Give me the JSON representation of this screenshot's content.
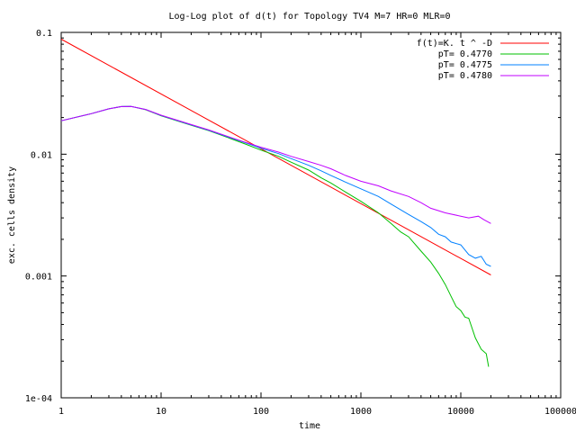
{
  "chart_data": {
    "type": "line",
    "title": "Log-Log plot of d(t) for Topology TV4 M=7 HR=0 MLR=0",
    "xlabel": "time",
    "ylabel": "exc. cells density",
    "x_scale": "log",
    "y_scale": "log",
    "xlim": [
      1,
      100000
    ],
    "ylim": [
      0.0001,
      0.1
    ],
    "grid": false,
    "legend_position": "top-right",
    "x_ticks": [
      {
        "value": 1,
        "label": "1"
      },
      {
        "value": 10,
        "label": "10"
      },
      {
        "value": 100,
        "label": "100"
      },
      {
        "value": 1000,
        "label": "1000"
      },
      {
        "value": 10000,
        "label": "10000"
      },
      {
        "value": 100000,
        "label": "100000"
      }
    ],
    "y_ticks": [
      {
        "value": 0.0001,
        "label": "1e-04"
      },
      {
        "value": 0.001,
        "label": "0.001"
      },
      {
        "value": 0.01,
        "label": "0.01"
      },
      {
        "value": 0.1,
        "label": "0.1"
      }
    ],
    "series": [
      {
        "name": "f(t)=K. t ^ -D",
        "color": "#ff0000",
        "points": [
          [
            1,
            0.088
          ],
          [
            20000,
            0.00102
          ]
        ]
      },
      {
        "name": "pT= 0.4770",
        "color": "#00c000",
        "points": [
          [
            1,
            0.0188
          ],
          [
            2,
            0.0215
          ],
          [
            3,
            0.0236
          ],
          [
            4,
            0.0246
          ],
          [
            5,
            0.0247
          ],
          [
            7,
            0.0232
          ],
          [
            10,
            0.0207
          ],
          [
            20,
            0.0173
          ],
          [
            30,
            0.0156
          ],
          [
            50,
            0.0134
          ],
          [
            70,
            0.0121
          ],
          [
            100,
            0.0108
          ],
          [
            150,
            0.0096
          ],
          [
            200,
            0.0086
          ],
          [
            300,
            0.0074
          ],
          [
            400,
            0.0064
          ],
          [
            500,
            0.0058
          ],
          [
            700,
            0.0049
          ],
          [
            1000,
            0.0041
          ],
          [
            1500,
            0.0033
          ],
          [
            2000,
            0.0027
          ],
          [
            2500,
            0.0023
          ],
          [
            3000,
            0.0021
          ],
          [
            4000,
            0.0016
          ],
          [
            5000,
            0.0013
          ],
          [
            6000,
            0.00105
          ],
          [
            7000,
            0.00085
          ],
          [
            8000,
            0.00068
          ],
          [
            9000,
            0.00056
          ],
          [
            10000,
            0.00052
          ],
          [
            11000,
            0.00046
          ],
          [
            12000,
            0.00045
          ],
          [
            14000,
            0.00031
          ],
          [
            16000,
            0.00025
          ],
          [
            18000,
            0.00023
          ],
          [
            19000,
            0.00018
          ]
        ]
      },
      {
        "name": "pT= 0.4775",
        "color": "#0080ff",
        "points": [
          [
            1,
            0.0188
          ],
          [
            2,
            0.0215
          ],
          [
            3,
            0.0236
          ],
          [
            4,
            0.0246
          ],
          [
            5,
            0.0247
          ],
          [
            7,
            0.0233
          ],
          [
            10,
            0.0208
          ],
          [
            20,
            0.0174
          ],
          [
            30,
            0.0157
          ],
          [
            50,
            0.0136
          ],
          [
            70,
            0.0124
          ],
          [
            100,
            0.0112
          ],
          [
            150,
            0.0101
          ],
          [
            200,
            0.0092
          ],
          [
            300,
            0.0081
          ],
          [
            400,
            0.0073
          ],
          [
            500,
            0.0067
          ],
          [
            700,
            0.0059
          ],
          [
            1000,
            0.0052
          ],
          [
            1500,
            0.0045
          ],
          [
            2000,
            0.0039
          ],
          [
            3000,
            0.0032
          ],
          [
            4000,
            0.0028
          ],
          [
            5000,
            0.0025
          ],
          [
            6000,
            0.0022
          ],
          [
            7000,
            0.0021
          ],
          [
            8000,
            0.0019
          ],
          [
            10000,
            0.0018
          ],
          [
            12000,
            0.0015
          ],
          [
            14000,
            0.0014
          ],
          [
            16000,
            0.00145
          ],
          [
            18000,
            0.00125
          ],
          [
            20000,
            0.0012
          ]
        ]
      },
      {
        "name": "pT= 0.4780",
        "color": "#c000ff",
        "points": [
          [
            1,
            0.0188
          ],
          [
            2,
            0.0215
          ],
          [
            3,
            0.0236
          ],
          [
            4,
            0.0246
          ],
          [
            5,
            0.0247
          ],
          [
            7,
            0.0233
          ],
          [
            10,
            0.0209
          ],
          [
            20,
            0.0175
          ],
          [
            30,
            0.0158
          ],
          [
            50,
            0.0137
          ],
          [
            70,
            0.0125
          ],
          [
            100,
            0.0114
          ],
          [
            150,
            0.0104
          ],
          [
            200,
            0.0096
          ],
          [
            300,
            0.0087
          ],
          [
            400,
            0.0081
          ],
          [
            500,
            0.0076
          ],
          [
            700,
            0.0067
          ],
          [
            1000,
            0.006
          ],
          [
            1500,
            0.0055
          ],
          [
            2000,
            0.005
          ],
          [
            3000,
            0.0045
          ],
          [
            4000,
            0.004
          ],
          [
            5000,
            0.0036
          ],
          [
            7000,
            0.0033
          ],
          [
            10000,
            0.0031
          ],
          [
            12000,
            0.003
          ],
          [
            15000,
            0.0031
          ],
          [
            17000,
            0.0029
          ],
          [
            20000,
            0.0027
          ]
        ]
      }
    ]
  }
}
